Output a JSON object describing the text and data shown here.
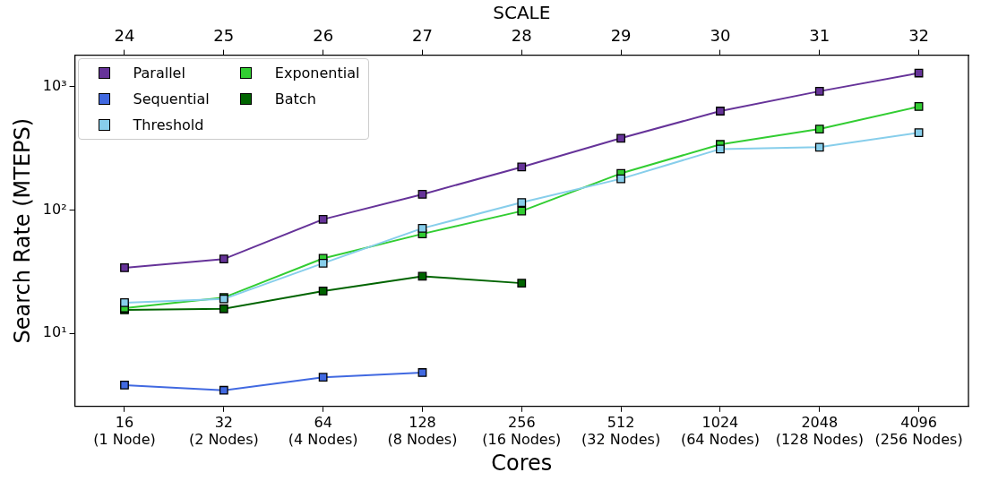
{
  "chart_data": {
    "type": "line",
    "xlabel": "Cores",
    "ylabel": "Search Rate (MTEPS)",
    "x2label": "SCALE",
    "categories": [
      "16\n(1 Node)",
      "32\n(2 Nodes)",
      "64\n(4 Nodes)",
      "128\n(8 Nodes)",
      "256\n(16 Nodes)",
      "512\n(32 Nodes)",
      "1024\n(64 Nodes)",
      "2048\n(128 Nodes)",
      "4096\n(256 Nodes)"
    ],
    "series": [
      {
        "name": "Parallel",
        "color": "#663399",
        "values": [
          34,
          40,
          84,
          134,
          223,
          382,
          634,
          918,
          1290
        ]
      },
      {
        "name": "Sequential",
        "color": "#4169e1",
        "values": [
          3.8,
          3.45,
          4.4,
          4.8,
          null,
          null,
          null,
          null,
          null
        ]
      },
      {
        "name": "Threshold",
        "color": "#87ceeb",
        "values": [
          17.7,
          19,
          37,
          71,
          115,
          179,
          312,
          323,
          423
        ]
      },
      {
        "name": "Exponential",
        "color": "#32cd32",
        "values": [
          16,
          19.5,
          40.5,
          64,
          98,
          198,
          340,
          453,
          690
        ]
      },
      {
        "name": "Batch",
        "color": "#006400",
        "values": [
          15.5,
          15.8,
          22,
          29,
          25.5,
          null,
          null,
          null,
          null
        ]
      }
    ],
    "log": "y",
    "x2lim": [
      23.5,
      32.5
    ],
    "x2ticks": [
      24,
      25,
      26,
      27,
      28,
      29,
      30,
      31,
      32
    ],
    "ylim": [
      2.55,
      1800
    ],
    "yticks": [
      {
        "value": 10,
        "label": "10¹"
      },
      {
        "value": 100,
        "label": "10²"
      },
      {
        "value": 1000,
        "label": "10³"
      }
    ],
    "grid": false,
    "legend": "top left",
    "marker": "square",
    "line_style": "solid"
  }
}
